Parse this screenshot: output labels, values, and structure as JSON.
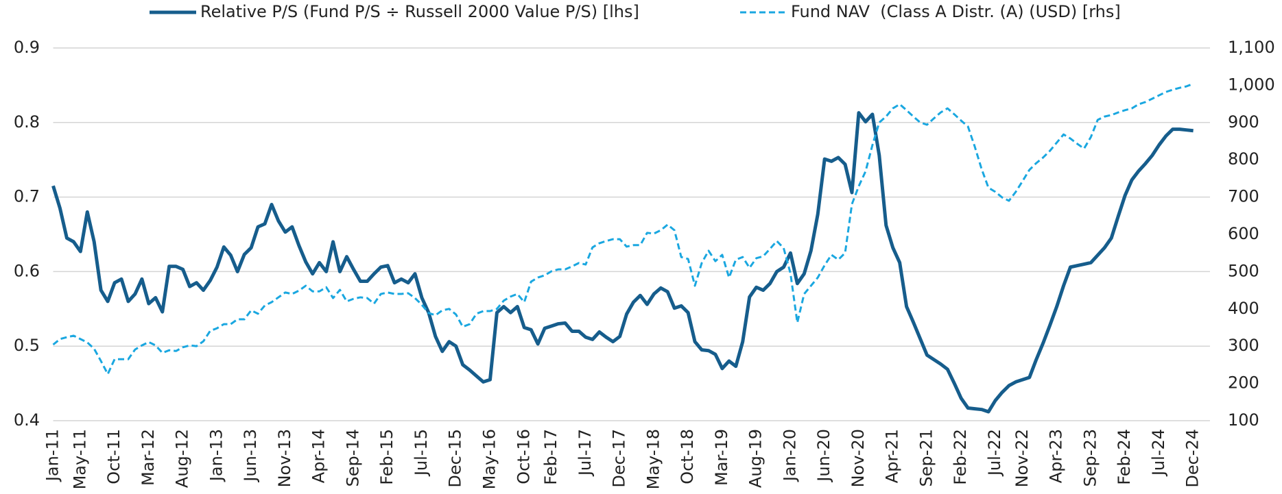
{
  "chart_data": {
    "type": "line",
    "categories": [
      "Jan-11",
      null,
      null,
      null,
      "May-11",
      null,
      null,
      null,
      null,
      "Oct-11",
      null,
      null,
      null,
      null,
      "Mar-12",
      null,
      null,
      null,
      null,
      "Aug-12",
      null,
      null,
      null,
      null,
      "Jan-13",
      null,
      null,
      null,
      null,
      "Jun-13",
      null,
      null,
      null,
      null,
      "Nov-13",
      null,
      null,
      null,
      null,
      "Apr-14",
      null,
      null,
      null,
      null,
      "Sep-14",
      null,
      null,
      null,
      null,
      "Feb-15",
      null,
      null,
      null,
      null,
      "Jul-15",
      null,
      null,
      null,
      null,
      "Dec-15",
      null,
      null,
      null,
      null,
      "May-16",
      null,
      null,
      null,
      null,
      "Oct-16",
      null,
      null,
      null,
      "Feb-17",
      null,
      null,
      null,
      null,
      "Jul-17",
      null,
      null,
      null,
      null,
      "Dec-17",
      null,
      null,
      null,
      null,
      "May-18",
      null,
      null,
      null,
      null,
      "Oct-18",
      null,
      null,
      null,
      null,
      "Mar-19",
      null,
      null,
      null,
      null,
      "Aug-19",
      null,
      null,
      null,
      null,
      "Jan-20",
      null,
      null,
      null,
      null,
      "Jun-20",
      null,
      null,
      null,
      null,
      "Nov-20",
      null,
      null,
      null,
      null,
      "Apr-21",
      null,
      null,
      null,
      null,
      "Sep-21",
      null,
      null,
      null,
      null,
      "Feb-22",
      null,
      null,
      null,
      null,
      "Jul-22",
      null,
      null,
      null,
      "Nov-22",
      null,
      null,
      null,
      null,
      "Apr-23",
      null,
      null,
      null,
      null,
      "Sep-23",
      null,
      null,
      null,
      null,
      "Feb-24",
      null,
      null,
      null,
      null,
      "Jul-24",
      null,
      null,
      null,
      null,
      "Dec-24"
    ],
    "series": [
      {
        "name": "Relative P/S (Fund P/S ÷ Russell 2000 Value P/S) [lhs]",
        "color": "#165d8c",
        "linestyle": "solid",
        "axis": "y",
        "values": [
          0.715,
          0.685,
          0.645,
          0.64,
          0.627,
          0.68,
          0.64,
          0.575,
          0.56,
          0.585,
          0.59,
          0.56,
          0.57,
          0.59,
          0.557,
          0.565,
          0.546,
          0.607,
          0.607,
          0.603,
          0.58,
          0.585,
          0.575,
          0.588,
          0.606,
          0.633,
          0.622,
          0.6,
          0.623,
          0.632,
          0.66,
          0.664,
          0.69,
          0.668,
          0.653,
          0.66,
          0.635,
          0.613,
          0.597,
          0.612,
          0.6,
          0.64,
          0.6,
          0.62,
          0.603,
          0.587,
          0.587,
          0.597,
          0.606,
          0.608,
          0.585,
          0.59,
          0.585,
          0.597,
          0.565,
          0.545,
          0.513,
          0.493,
          0.506,
          0.5,
          0.475,
          0.468,
          0.46,
          0.452,
          0.455,
          0.545,
          0.553,
          0.545,
          0.553,
          0.525,
          0.522,
          0.503,
          0.524,
          0.527,
          0.53,
          0.531,
          0.52,
          0.52,
          0.512,
          0.509,
          0.519,
          0.512,
          0.506,
          0.513,
          0.543,
          0.559,
          0.568,
          0.556,
          0.57,
          0.578,
          0.573,
          0.551,
          0.554,
          0.545,
          0.506,
          0.495,
          0.494,
          0.489,
          0.47,
          0.48,
          0.473,
          0.506,
          0.566,
          0.579,
          0.575,
          0.584,
          0.6,
          0.606,
          0.625,
          0.584,
          0.597,
          0.628,
          0.677,
          0.751,
          0.748,
          0.753,
          0.744,
          0.706,
          0.813,
          0.801,
          0.811,
          0.756,
          0.662,
          0.632,
          0.612,
          0.553,
          0.532,
          0.51,
          0.488,
          0.482,
          0.476,
          0.469,
          0.45,
          0.43,
          0.417,
          0.416,
          0.415,
          0.412,
          0.427,
          0.438,
          0.447,
          0.452,
          0.455,
          0.458,
          0.482,
          0.504,
          0.528,
          0.553,
          0.581,
          0.606,
          0.608,
          0.61,
          0.612,
          0.622,
          0.632,
          0.645,
          0.674,
          0.702,
          0.723,
          0.735,
          0.745,
          0.756,
          0.77,
          0.782,
          0.791,
          0.791,
          0.79,
          0.789
        ]
      },
      {
        "name": "Fund NAV  (Class A Distr. (A) (USD) [rhs]",
        "color": "#1aa7e0",
        "linestyle": "dashed",
        "axis": "y2",
        "values": [
          304,
          319,
          324,
          328,
          319,
          310,
          293,
          260,
          225,
          265,
          265,
          265,
          291,
          302,
          311,
          302,
          282,
          289,
          287,
          297,
          302,
          300,
          313,
          341,
          348,
          359,
          359,
          372,
          372,
          396,
          387,
          409,
          418,
          431,
          444,
          440,
          449,
          462,
          447,
          447,
          458,
          429,
          451,
          420,
          427,
          431,
          429,
          414,
          440,
          444,
          440,
          440,
          442,
          429,
          411,
          389,
          383,
          396,
          400,
          385,
          352,
          359,
          387,
          394,
          394,
          400,
          422,
          433,
          440,
          418,
          473,
          484,
          490,
          501,
          506,
          506,
          514,
          523,
          519,
          565,
          576,
          582,
          587,
          587,
          567,
          571,
          571,
          604,
          602,
          611,
          626,
          611,
          539,
          534,
          462,
          523,
          556,
          528,
          545,
          484,
          532,
          539,
          510,
          536,
          541,
          561,
          582,
          563,
          495,
          363,
          440,
          462,
          484,
          517,
          545,
          532,
          550,
          681,
          729,
          769,
          839,
          900,
          916,
          938,
          949,
          933,
          916,
          900,
          894,
          911,
          927,
          938,
          922,
          905,
          889,
          835,
          775,
          725,
          714,
          699,
          690,
          714,
          743,
          773,
          791,
          806,
          824,
          846,
          868,
          857,
          843,
          830,
          861,
          907,
          916,
          920,
          927,
          933,
          938,
          949,
          955,
          964,
          973,
          982,
          988,
          993,
          997,
          1004
        ]
      }
    ],
    "ylim": [
      0.4,
      0.9
    ],
    "yticks": [
      0.4,
      0.5,
      0.6,
      0.7,
      0.8,
      0.9
    ],
    "y2lim": [
      100,
      1100
    ],
    "y2ticks": [
      100,
      200,
      300,
      400,
      500,
      600,
      700,
      800,
      900,
      {
        "value": 1000,
        "label": "1,000"
      },
      {
        "value": 1100,
        "label": "1,100"
      }
    ],
    "grid": true,
    "legend": "top"
  }
}
